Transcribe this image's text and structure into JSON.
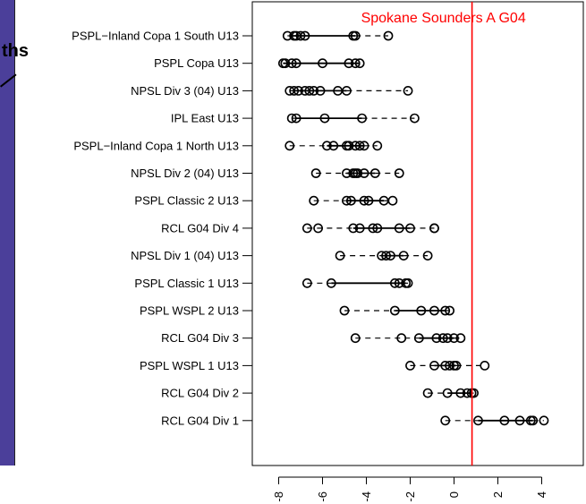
{
  "background_fragment": {
    "text": "ths"
  },
  "chart_data": {
    "type": "boxplot-dotplot",
    "title": "",
    "xlabel": "",
    "ylabel": "",
    "xlim": [
      -9.2,
      5.0
    ],
    "x_ticks": [
      -8,
      -6,
      -4,
      -2,
      0,
      2,
      4
    ],
    "x_tick_labels": [
      "-8",
      "-6",
      "-4",
      "-2",
      "0",
      "2",
      "4"
    ],
    "grid": false,
    "legend": "none",
    "reference_line": {
      "x": 0.82,
      "label": "Spokane Sounders A G04",
      "color": "#ff0000"
    },
    "colors": {
      "points": "#000000",
      "reference": "#ff0000",
      "axis": "#000000"
    },
    "categories": [
      "PSPL−Inland Copa 1 South U13",
      "PSPL Copa U13",
      "NPSL Div 3 (04) U13",
      "IPL East U13",
      "PSPL−Inland Copa 1 North U13",
      "NPSL Div 2 (04) U13",
      "PSPL Classic 2 U13",
      "RCL G04 Div 4",
      "NPSL Div 1 (04) U13",
      "PSPL Classic 1 U13",
      "PSPL WSPL 2 U13",
      "RCL G04 Div 3",
      "PSPL WSPL 1 U13",
      "RCL G04 Div 2",
      "RCL G04 Div 1"
    ],
    "series": [
      {
        "category": "PSPL−Inland Copa 1 South U13",
        "q1": -7.5,
        "q3": -4.5,
        "whisker_low": -7.6,
        "whisker_high": -3.0,
        "values": [
          -7.6,
          -7.3,
          -7.2,
          -7.0,
          -6.8,
          -4.6,
          -4.5,
          -3.0
        ]
      },
      {
        "category": "PSPL Copa U13",
        "q1": -7.8,
        "q3": -4.3,
        "whisker_low": -7.8,
        "whisker_high": -4.3,
        "values": [
          -7.8,
          -7.7,
          -7.4,
          -7.2,
          -6.0,
          -4.8,
          -4.5,
          -4.3
        ]
      },
      {
        "category": "NPSL Div 3 (04) U13",
        "q1": -7.3,
        "q3": -4.9,
        "whisker_low": -7.5,
        "whisker_high": -2.1,
        "values": [
          -7.5,
          -7.3,
          -7.1,
          -6.8,
          -6.6,
          -6.4,
          -6.1,
          -5.3,
          -4.9,
          -2.1
        ]
      },
      {
        "category": "IPL East U13",
        "q1": -7.2,
        "q3": -4.2,
        "whisker_low": -7.4,
        "whisker_high": -1.8,
        "values": [
          -7.4,
          -7.2,
          -5.9,
          -4.2,
          -1.8
        ]
      },
      {
        "category": "PSPL−Inland Copa 1 North U13",
        "q1": -5.8,
        "q3": -4.1,
        "whisker_low": -7.5,
        "whisker_high": -3.5,
        "values": [
          -7.5,
          -5.8,
          -5.5,
          -4.9,
          -4.8,
          -4.5,
          -4.3,
          -4.1,
          -3.5
        ]
      },
      {
        "category": "NPSL Div 2 (04) U13",
        "q1": -4.9,
        "q3": -3.6,
        "whisker_low": -6.3,
        "whisker_high": -2.5,
        "values": [
          -6.3,
          -4.9,
          -4.6,
          -4.5,
          -4.4,
          -4.1,
          -3.6,
          -2.5
        ]
      },
      {
        "category": "PSPL Classic 2 U13",
        "q1": -4.9,
        "q3": -3.2,
        "whisker_low": -6.4,
        "whisker_high": -2.8,
        "values": [
          -6.4,
          -4.9,
          -4.7,
          -4.1,
          -3.9,
          -3.2,
          -2.8
        ]
      },
      {
        "category": "RCL G04 Div 4",
        "q1": -4.6,
        "q3": -2.0,
        "whisker_low": -6.7,
        "whisker_high": -0.9,
        "values": [
          -6.7,
          -6.2,
          -4.6,
          -4.3,
          -3.7,
          -3.5,
          -2.5,
          -2.0,
          -0.9,
          -0.9
        ]
      },
      {
        "category": "NPSL Div 1 (04) U13",
        "q1": -3.3,
        "q3": -2.3,
        "whisker_low": -5.2,
        "whisker_high": -1.2,
        "values": [
          -5.2,
          -3.3,
          -3.1,
          -2.9,
          -2.3,
          -1.2
        ]
      },
      {
        "category": "PSPL Classic 1 U13",
        "q1": -5.6,
        "q3": -2.2,
        "whisker_low": -6.7,
        "whisker_high": -2.1,
        "values": [
          -6.7,
          -5.6,
          -2.7,
          -2.5,
          -2.2,
          -2.1
        ]
      },
      {
        "category": "PSPL WSPL 2 U13",
        "q1": -2.7,
        "q3": -0.4,
        "whisker_low": -5.0,
        "whisker_high": -0.2,
        "values": [
          -5.0,
          -2.7,
          -1.5,
          -0.9,
          -0.4,
          -0.2
        ]
      },
      {
        "category": "RCL G04 Div 3",
        "q1": -1.6,
        "q3": 0.0,
        "whisker_low": -4.5,
        "whisker_high": 0.3,
        "values": [
          -4.5,
          -2.4,
          -1.6,
          -0.8,
          -0.5,
          -0.3,
          0.0,
          0.3
        ]
      },
      {
        "category": "PSPL WSPL 1 U13",
        "q1": -0.9,
        "q3": 0.1,
        "whisker_low": -2.0,
        "whisker_high": 1.4,
        "values": [
          -2.0,
          -0.9,
          -0.4,
          -0.2,
          0.0,
          0.1,
          1.4
        ]
      },
      {
        "category": "RCL G04 Div 2",
        "q1": -0.3,
        "q3": 0.8,
        "whisker_low": -1.2,
        "whisker_high": 0.9,
        "values": [
          -1.2,
          -0.3,
          0.3,
          0.6,
          0.8,
          0.9
        ]
      },
      {
        "category": "RCL G04 Div 1",
        "q1": 1.1,
        "q3": 3.6,
        "whisker_low": -0.4,
        "whisker_high": 4.1,
        "values": [
          -0.4,
          1.1,
          2.3,
          3.0,
          3.5,
          3.6,
          4.1
        ]
      }
    ]
  }
}
